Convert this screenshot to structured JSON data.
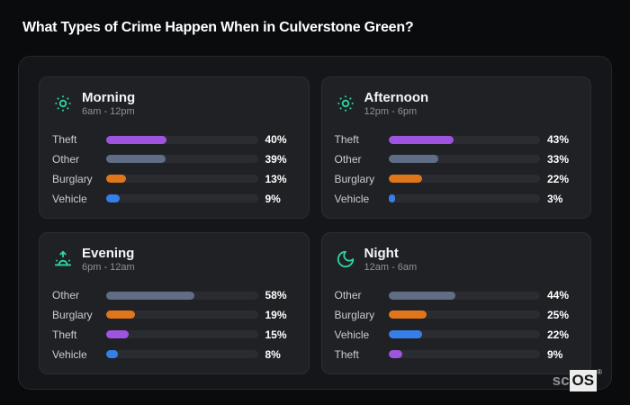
{
  "page_title": "What Types of Crime Happen When in Culverstone Green?",
  "colors": {
    "page_background": "#0a0b0d",
    "board_background": "#141619",
    "card_background": "#1f2125",
    "track": "#2a2c31",
    "accent_teal": "#2ed3a3",
    "theft_purple": "#9f54e0",
    "other_slate": "#5f6e85",
    "burglary_orange": "#e0761c",
    "vehicle_blue": "#377fe8"
  },
  "watermark": {
    "prefix": "sc",
    "brand": "OS",
    "mark": "®"
  },
  "chart_data": [
    {
      "type": "bar",
      "orientation": "horizontal",
      "title": "Morning",
      "subtitle": "6am - 12pm",
      "icon": "sun-icon",
      "categories": [
        "Theft",
        "Other",
        "Burglary",
        "Vehicle"
      ],
      "values": [
        40,
        39,
        13,
        9
      ],
      "value_labels": [
        "40%",
        "39%",
        "13%",
        "9%"
      ],
      "bar_colors": [
        "#9f54e0",
        "#5f6e85",
        "#e0761c",
        "#377fe8"
      ],
      "xlim": [
        0,
        100
      ],
      "grid": false,
      "legend": false
    },
    {
      "type": "bar",
      "orientation": "horizontal",
      "title": "Afternoon",
      "subtitle": "12pm - 6pm",
      "icon": "sun-icon",
      "categories": [
        "Theft",
        "Other",
        "Burglary",
        "Vehicle"
      ],
      "values": [
        43,
        33,
        22,
        3
      ],
      "value_labels": [
        "43%",
        "33%",
        "22%",
        "3%"
      ],
      "bar_colors": [
        "#9f54e0",
        "#5f6e85",
        "#e0761c",
        "#377fe8"
      ],
      "xlim": [
        0,
        100
      ],
      "grid": false,
      "legend": false
    },
    {
      "type": "bar",
      "orientation": "horizontal",
      "title": "Evening",
      "subtitle": "6pm - 12am",
      "icon": "sunrise-icon",
      "categories": [
        "Other",
        "Burglary",
        "Theft",
        "Vehicle"
      ],
      "values": [
        58,
        19,
        15,
        8
      ],
      "value_labels": [
        "58%",
        "19%",
        "15%",
        "8%"
      ],
      "bar_colors": [
        "#5f6e85",
        "#e0761c",
        "#9f54e0",
        "#377fe8"
      ],
      "xlim": [
        0,
        100
      ],
      "grid": false,
      "legend": false
    },
    {
      "type": "bar",
      "orientation": "horizontal",
      "title": "Night",
      "subtitle": "12am - 6am",
      "icon": "moon-icon",
      "categories": [
        "Other",
        "Burglary",
        "Vehicle",
        "Theft"
      ],
      "values": [
        44,
        25,
        22,
        9
      ],
      "value_labels": [
        "44%",
        "25%",
        "22%",
        "9%"
      ],
      "bar_colors": [
        "#5f6e85",
        "#e0761c",
        "#377fe8",
        "#9f54e0"
      ],
      "xlim": [
        0,
        100
      ],
      "grid": false,
      "legend": false
    }
  ]
}
